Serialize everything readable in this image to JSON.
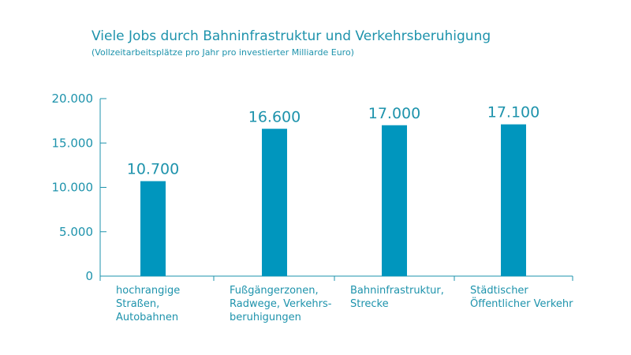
{
  "chart_data": {
    "type": "bar",
    "title": "Viele Jobs durch Bahninfrastruktur und Verkehrsberuhigung",
    "subtitle": "(Vollzeitarbeitsplätze pro Jahr pro investierter Milliarde Euro)",
    "categories": [
      [
        "hochrangige",
        "Straßen,",
        "Autobahnen"
      ],
      [
        "Fußgängerzonen,",
        "Radwege, Verkehrs-",
        "beruhigungen"
      ],
      [
        "Bahninfrastruktur,",
        "Strecke"
      ],
      [
        "Städtischer",
        "Öffentlicher Verkehr"
      ]
    ],
    "values": [
      10700,
      16600,
      17000,
      17100
    ],
    "value_labels": [
      "10.700",
      "16.600",
      "17.000",
      "17.100"
    ],
    "yticks": [
      0,
      5000,
      10000,
      15000,
      20000
    ],
    "ytick_labels": [
      "0",
      "5.000",
      "10.000",
      "15.000",
      "20.000"
    ],
    "ylim": [
      0,
      20000
    ],
    "grid": false,
    "legend": "none",
    "colors": {
      "bar": "#0096be",
      "text": "#1e93ac",
      "axis": "#1e93ac"
    }
  }
}
